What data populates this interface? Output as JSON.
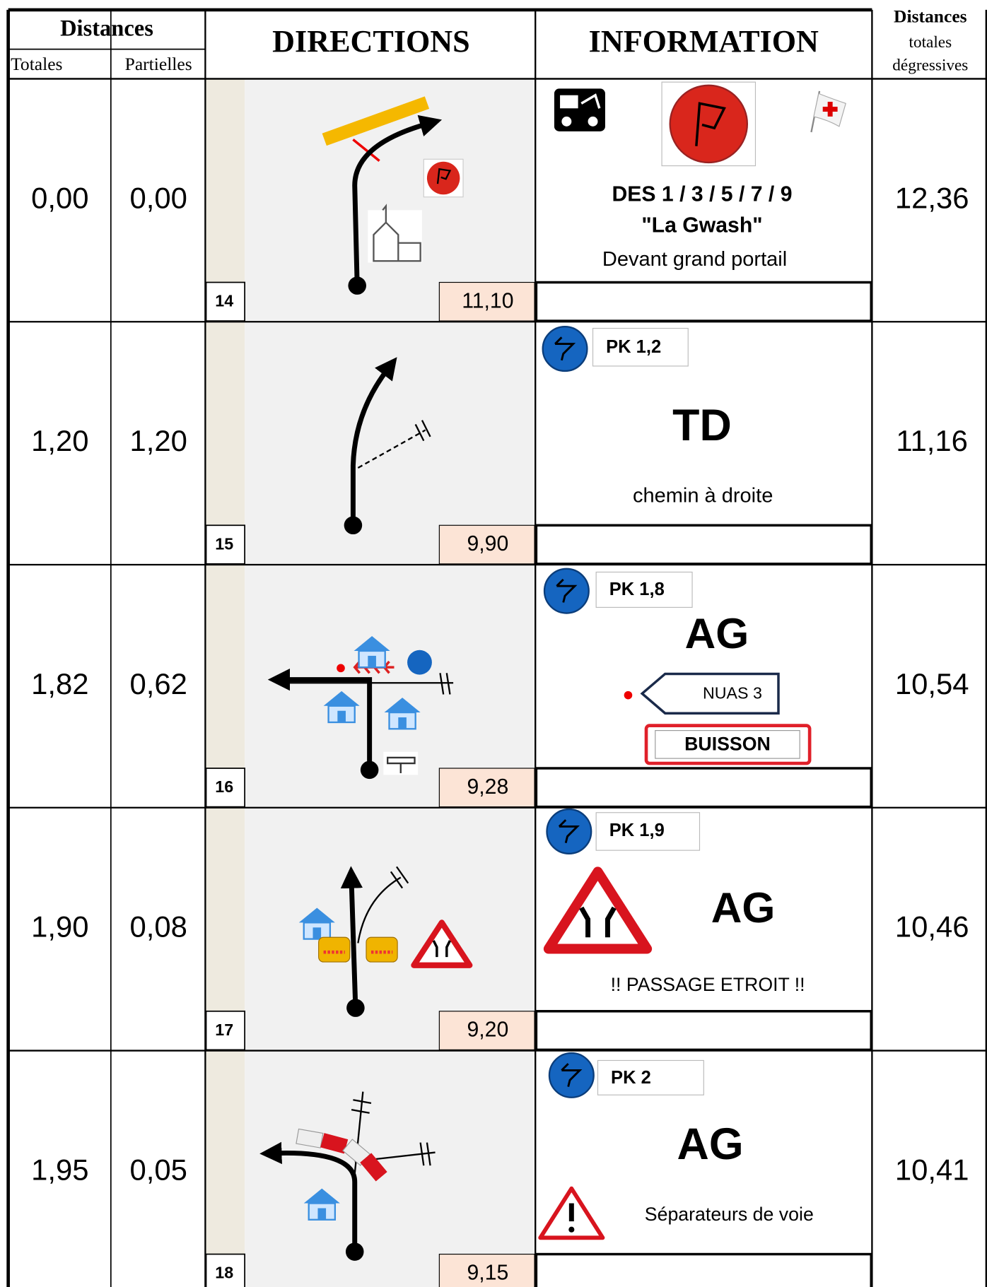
{
  "header": {
    "distances": "Distances",
    "totales": "Totales",
    "partielles": "Partielles",
    "directions": "DIRECTIONS",
    "information": "INFORMATION",
    "degressive": [
      "Distances",
      "totales",
      "dégressives"
    ]
  },
  "rows": [
    {
      "total": "0,00",
      "partial": "0,00",
      "number": "14",
      "remaining": "11,10",
      "degressive": "12,36",
      "info": {
        "lines": [
          "DES 1 / 3 / 5 / 7 / 9",
          "\"La Gwash\""
        ],
        "note": "Devant grand portail"
      }
    },
    {
      "total": "1,20",
      "partial": "1,20",
      "number": "15",
      "remaining": "9,90",
      "degressive": "11,16",
      "info": {
        "pk": "PK 1,2",
        "main": "TD",
        "note": "chemin à droite"
      }
    },
    {
      "total": "1,82",
      "partial": "0,62",
      "number": "16",
      "remaining": "9,28",
      "degressive": "10,54",
      "info": {
        "pk": "PK 1,8",
        "main": "AG",
        "sign_direction": "NUAS 3",
        "sign_place": "BUISSON"
      }
    },
    {
      "total": "1,90",
      "partial": "0,08",
      "number": "17",
      "remaining": "9,20",
      "degressive": "10,46",
      "info": {
        "pk": "PK 1,9",
        "main": "AG",
        "note": "!! PASSAGE ETROIT !!"
      }
    },
    {
      "total": "1,95",
      "partial": "0,05",
      "number": "18",
      "remaining": "9,15",
      "degressive": "10,41",
      "info": {
        "pk": "PK 2",
        "main": "AG",
        "note": "Séparateurs de voie"
      }
    }
  ]
}
